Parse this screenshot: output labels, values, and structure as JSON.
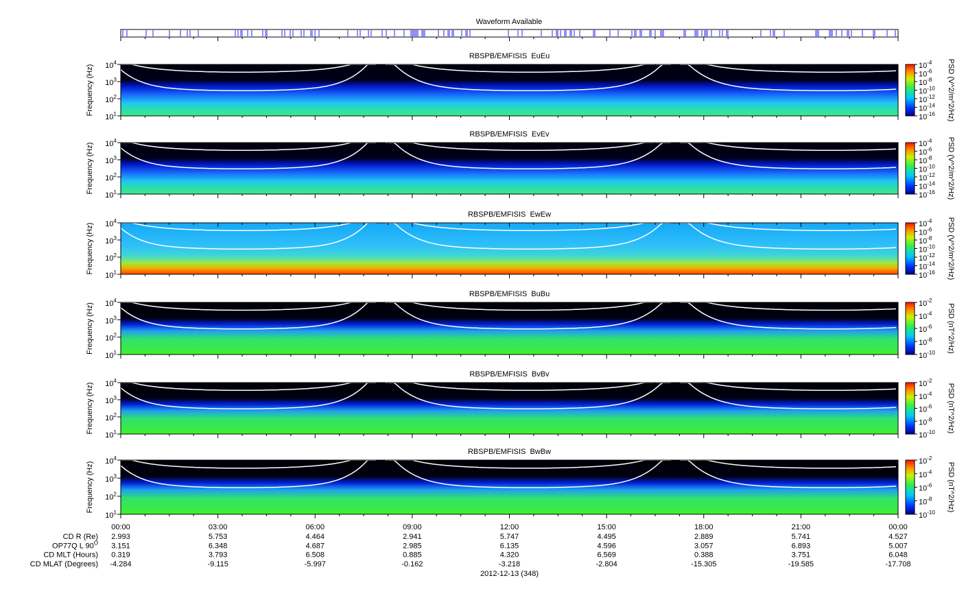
{
  "waveform": {
    "title": "Waveform Available"
  },
  "chart_data": [
    {
      "type": "spectrogram",
      "title": "RBSPB/EMFISIS  EuEu",
      "y_label": "Frequency (Hz)",
      "log_y": true,
      "ylim": [
        10,
        10000
      ],
      "yticks": [
        {
          "value": 10,
          "label": "10^1"
        },
        {
          "value": 100,
          "label": "10^2"
        },
        {
          "value": 1000,
          "label": "10^3"
        },
        {
          "value": 10000,
          "label": "10^4"
        }
      ],
      "colorbar": {
        "label": "PSD (V^2/m^2/Hz)",
        "zlim": [
          1e-16,
          0.0001
        ],
        "zticks": [
          {
            "value": 0.0001,
            "label": "10^-4"
          },
          {
            "value": 1e-06,
            "label": "10^-6"
          },
          {
            "value": 1e-08,
            "label": "10^-8"
          },
          {
            "value": 1e-10,
            "label": "10^-10"
          },
          {
            "value": 1e-12,
            "label": "10^-12"
          },
          {
            "value": 1e-14,
            "label": "10^-14"
          },
          {
            "value": 1e-16,
            "label": "10^-16"
          }
        ]
      }
    },
    {
      "type": "spectrogram",
      "title": "RBSPB/EMFISIS  EvEv",
      "y_label": "Frequency (Hz)",
      "log_y": true,
      "ylim": [
        10,
        10000
      ],
      "yticks": [
        {
          "value": 10,
          "label": "10^1"
        },
        {
          "value": 100,
          "label": "10^2"
        },
        {
          "value": 1000,
          "label": "10^3"
        },
        {
          "value": 10000,
          "label": "10^4"
        }
      ],
      "colorbar": {
        "label": "PSD (V^2/m^2/Hz)",
        "zlim": [
          1e-16,
          0.0001
        ],
        "zticks": [
          {
            "value": 0.0001,
            "label": "10^-4"
          },
          {
            "value": 1e-06,
            "label": "10^-6"
          },
          {
            "value": 1e-08,
            "label": "10^-8"
          },
          {
            "value": 1e-10,
            "label": "10^-10"
          },
          {
            "value": 1e-12,
            "label": "10^-12"
          },
          {
            "value": 1e-14,
            "label": "10^-14"
          },
          {
            "value": 1e-16,
            "label": "10^-16"
          }
        ]
      }
    },
    {
      "type": "spectrogram",
      "title": "RBSPB/EMFISIS  EwEw",
      "y_label": "Frequency (Hz)",
      "log_y": true,
      "ylim": [
        10,
        10000
      ],
      "yticks": [
        {
          "value": 10,
          "label": "10^1"
        },
        {
          "value": 100,
          "label": "10^2"
        },
        {
          "value": 1000,
          "label": "10^3"
        },
        {
          "value": 10000,
          "label": "10^4"
        }
      ],
      "colorbar": {
        "label": "PSD (V^2/m^2/Hz)",
        "zlim": [
          1e-16,
          0.0001
        ],
        "zticks": [
          {
            "value": 0.0001,
            "label": "10^-4"
          },
          {
            "value": 1e-06,
            "label": "10^-6"
          },
          {
            "value": 1e-08,
            "label": "10^-8"
          },
          {
            "value": 1e-10,
            "label": "10^-10"
          },
          {
            "value": 1e-12,
            "label": "10^-12"
          },
          {
            "value": 1e-14,
            "label": "10^-14"
          },
          {
            "value": 1e-16,
            "label": "10^-16"
          }
        ]
      }
    },
    {
      "type": "spectrogram",
      "title": "RBSPB/EMFISIS  BuBu",
      "y_label": "Frequency (Hz)",
      "log_y": true,
      "ylim": [
        10,
        10000
      ],
      "yticks": [
        {
          "value": 10,
          "label": "10^1"
        },
        {
          "value": 100,
          "label": "10^2"
        },
        {
          "value": 1000,
          "label": "10^3"
        },
        {
          "value": 10000,
          "label": "10^4"
        }
      ],
      "colorbar": {
        "label": "PSD (nT^2/Hz)",
        "zlim": [
          1e-10,
          0.01
        ],
        "zticks": [
          {
            "value": 0.01,
            "label": "10^-2"
          },
          {
            "value": 0.0001,
            "label": "10^-4"
          },
          {
            "value": 1e-06,
            "label": "10^-6"
          },
          {
            "value": 1e-08,
            "label": "10^-8"
          },
          {
            "value": 1e-10,
            "label": "10^-10"
          }
        ]
      }
    },
    {
      "type": "spectrogram",
      "title": "RBSPB/EMFISIS  BvBv",
      "y_label": "Frequency (Hz)",
      "log_y": true,
      "ylim": [
        10,
        10000
      ],
      "yticks": [
        {
          "value": 10,
          "label": "10^1"
        },
        {
          "value": 100,
          "label": "10^2"
        },
        {
          "value": 1000,
          "label": "10^3"
        },
        {
          "value": 10000,
          "label": "10^4"
        }
      ],
      "colorbar": {
        "label": "PSD (nT^2/Hz)",
        "zlim": [
          1e-10,
          0.01
        ],
        "zticks": [
          {
            "value": 0.01,
            "label": "10^-2"
          },
          {
            "value": 0.0001,
            "label": "10^-4"
          },
          {
            "value": 1e-06,
            "label": "10^-6"
          },
          {
            "value": 1e-08,
            "label": "10^-8"
          },
          {
            "value": 1e-10,
            "label": "10^-10"
          }
        ]
      }
    },
    {
      "type": "spectrogram",
      "title": "RBSPB/EMFISIS  BwBw",
      "y_label": "Frequency (Hz)",
      "log_y": true,
      "ylim": [
        10,
        10000
      ],
      "yticks": [
        {
          "value": 10,
          "label": "10^1"
        },
        {
          "value": 100,
          "label": "10^2"
        },
        {
          "value": 1000,
          "label": "10^3"
        },
        {
          "value": 10000,
          "label": "10^4"
        }
      ],
      "colorbar": {
        "label": "PSD (nT^2/Hz)",
        "zlim": [
          1e-10,
          0.01
        ],
        "zticks": [
          {
            "value": 0.01,
            "label": "10^-2"
          },
          {
            "value": 0.0001,
            "label": "10^-4"
          },
          {
            "value": 1e-06,
            "label": "10^-6"
          },
          {
            "value": 1e-08,
            "label": "10^-8"
          },
          {
            "value": 1e-10,
            "label": "10^-10"
          }
        ]
      }
    }
  ],
  "time_axis": {
    "xlim": [
      0,
      24
    ],
    "xticks": [
      {
        "value": 0,
        "label": "00:00"
      },
      {
        "value": 3,
        "label": "03:00"
      },
      {
        "value": 6,
        "label": "06:00"
      },
      {
        "value": 9,
        "label": "09:00"
      },
      {
        "value": 12,
        "label": "12:00"
      },
      {
        "value": 15,
        "label": "15:00"
      },
      {
        "value": 18,
        "label": "18:00"
      },
      {
        "value": 21,
        "label": "21:00"
      },
      {
        "value": 24,
        "label": "00:00"
      }
    ]
  },
  "ephemeris": {
    "rows": [
      {
        "label": "CD R (Re)",
        "values": [
          "2.993",
          "5.753",
          "4.464",
          "2.941",
          "5.747",
          "4.495",
          "2.889",
          "5.741",
          "4.527"
        ]
      },
      {
        "label": "OP77Q L 90^O",
        "values": [
          "3.151",
          "6.348",
          "4.687",
          "2.985",
          "6.135",
          "4.596",
          "3.057",
          "6.893",
          "5.007"
        ]
      },
      {
        "label": "CD MLT (Hours)",
        "values": [
          "0.319",
          "3.793",
          "6.508",
          "0.885",
          "4.320",
          "6.569",
          "0.388",
          "3.751",
          "6.048"
        ]
      },
      {
        "label": "CD MLAT (Degrees)",
        "values": [
          "-4.284",
          "-9.115",
          "-5.997",
          "-0.162",
          "-3.218",
          "-2.804",
          "-15.305",
          "-19.585",
          "-17.708"
        ]
      }
    ]
  },
  "date": "2012-12-13 (348)"
}
